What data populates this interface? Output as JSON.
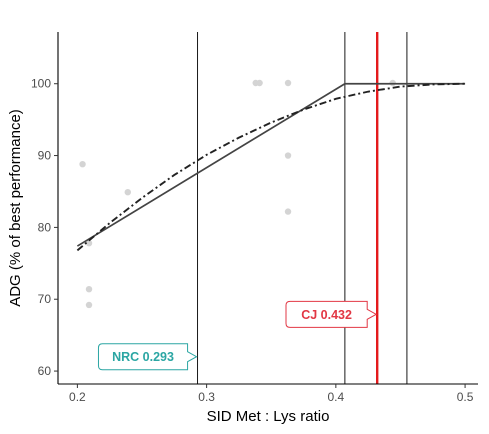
{
  "chart_data": {
    "type": "scatter",
    "title": "",
    "xlabel": "SID Met : Lys ratio",
    "ylabel": "ADG (% of best performance)",
    "xlim": [
      0.185,
      0.51
    ],
    "ylim": [
      58.2,
      107.2
    ],
    "x_ticks": [
      {
        "value": 0.2,
        "label": "0.2"
      },
      {
        "value": 0.3,
        "label": "0.3"
      },
      {
        "value": 0.4,
        "label": "0.4"
      },
      {
        "value": 0.5,
        "label": "0.5"
      }
    ],
    "y_ticks": [
      {
        "value": 60,
        "label": "60"
      },
      {
        "value": 70,
        "label": "70"
      },
      {
        "value": 80,
        "label": "80"
      },
      {
        "value": 90,
        "label": "90"
      },
      {
        "value": 100,
        "label": "100"
      }
    ],
    "points": [
      {
        "x": 0.204,
        "y": 88.8
      },
      {
        "x": 0.209,
        "y": 77.8
      },
      {
        "x": 0.209,
        "y": 71.4
      },
      {
        "x": 0.209,
        "y": 69.2
      },
      {
        "x": 0.239,
        "y": 84.9
      },
      {
        "x": 0.338,
        "y": 100.1
      },
      {
        "x": 0.341,
        "y": 100.1
      },
      {
        "x": 0.363,
        "y": 100.1
      },
      {
        "x": 0.363,
        "y": 90.0
      },
      {
        "x": 0.363,
        "y": 82.2
      },
      {
        "x": 0.444,
        "y": 100.1
      }
    ],
    "broken_line": [
      {
        "x": 0.2,
        "y": 77.4
      },
      {
        "x": 0.407,
        "y": 100.0
      },
      {
        "x": 0.5,
        "y": 100.0
      }
    ],
    "curvilinear": [
      {
        "x": 0.2,
        "y": 76.8
      },
      {
        "x": 0.225,
        "y": 80.6
      },
      {
        "x": 0.25,
        "y": 84.1
      },
      {
        "x": 0.275,
        "y": 87.3
      },
      {
        "x": 0.3,
        "y": 90.1
      },
      {
        "x": 0.325,
        "y": 92.5
      },
      {
        "x": 0.35,
        "y": 94.6
      },
      {
        "x": 0.375,
        "y": 96.4
      },
      {
        "x": 0.4,
        "y": 97.9
      },
      {
        "x": 0.425,
        "y": 98.9
      },
      {
        "x": 0.45,
        "y": 99.6
      },
      {
        "x": 0.475,
        "y": 99.9
      },
      {
        "x": 0.5,
        "y": 100.0
      }
    ],
    "vlines": [
      {
        "x": 0.293,
        "color": "#000000"
      },
      {
        "x": 0.407,
        "color": "#000000"
      },
      {
        "x": 0.455,
        "color": "#000000"
      },
      {
        "x": 0.432,
        "color": "#e41a1c"
      }
    ],
    "annotations": [
      {
        "text": "NRC 0.293",
        "x": 0.293,
        "y": 62.0,
        "color": "#2ba6a3"
      },
      {
        "text": "CJ 0.432",
        "x": 0.432,
        "y": 67.9,
        "color": "#e23744"
      }
    ],
    "grid": false,
    "colors": {
      "points": "#d4d4d4",
      "broken_line": "#444444",
      "curvilinear": "#222222"
    }
  }
}
